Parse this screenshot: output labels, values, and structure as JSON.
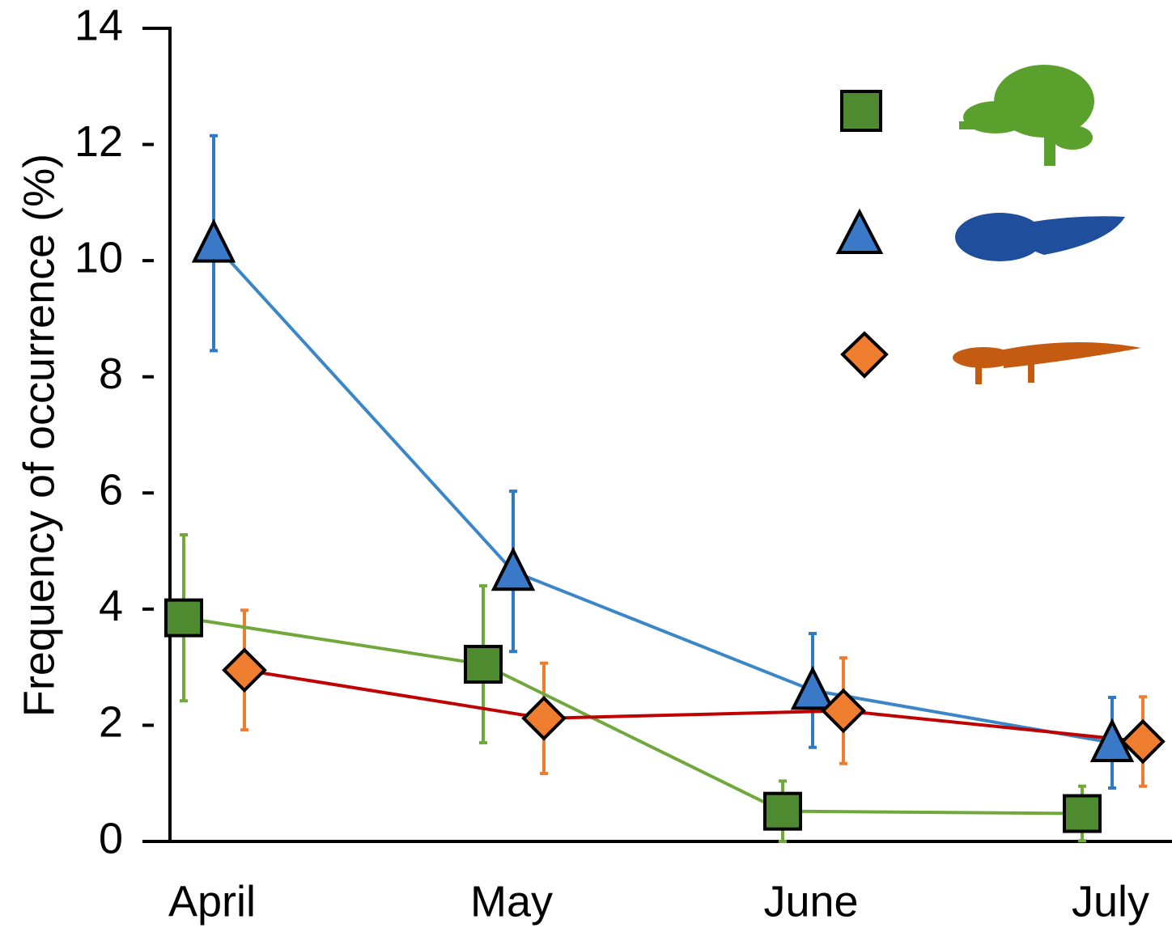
{
  "chart_data": {
    "type": "line",
    "y_label": "Frequency of occurrence (%)",
    "categories": [
      "April",
      "May",
      "June",
      "July"
    ],
    "series": [
      {
        "marker": "square",
        "color": "#70a83c",
        "marker_color": "#4e8a30",
        "error_color": "#70a83c",
        "values": [
          3.85,
          3.05,
          0.52,
          0.48
        ],
        "errors": [
          1.43,
          1.35,
          0.52,
          0.47
        ]
      },
      {
        "marker": "triangle",
        "color": "#3a86c8",
        "marker_color": "#3a78c8",
        "error_color": "#2f7ac0",
        "values": [
          10.3,
          4.65,
          2.6,
          1.7
        ],
        "errors": [
          1.85,
          1.38,
          0.98,
          0.78
        ]
      },
      {
        "marker": "diamond",
        "color": "#c00000",
        "marker_color": "#ee7d30",
        "error_color": "#ee7d30",
        "values": [
          2.95,
          2.12,
          2.25,
          1.72
        ],
        "errors": [
          1.03,
          0.95,
          0.91,
          0.77
        ]
      }
    ],
    "ylim": [
      0,
      14
    ],
    "yticks": [
      0,
      2,
      4,
      6,
      8,
      10,
      12,
      14
    ]
  }
}
